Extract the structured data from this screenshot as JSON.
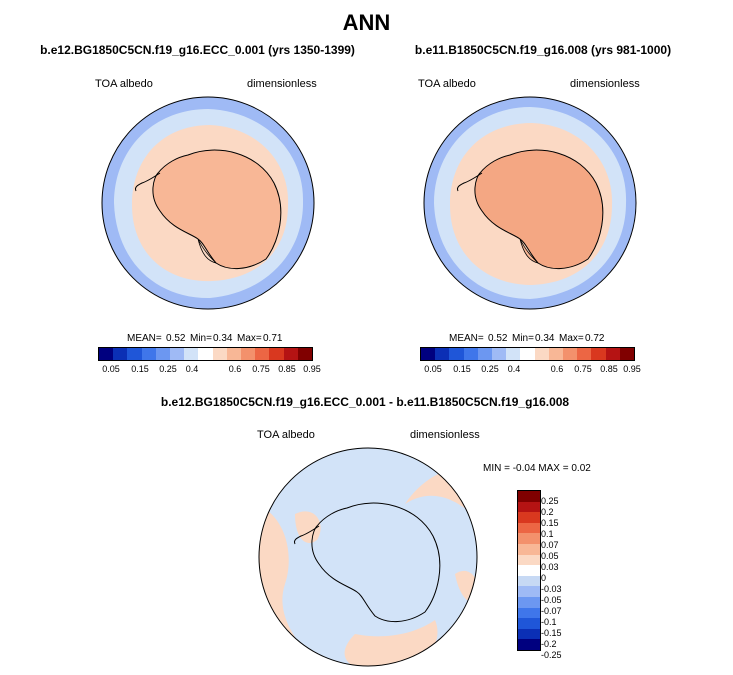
{
  "figure": {
    "main_title": "ANN",
    "panels": [
      {
        "title": "b.e12.BG1850C5CN.f19_g16.ECC_0.001 (yrs 1350-1399)",
        "variable": "TOA albedo",
        "units": "dimensionless",
        "stats": {
          "mean_label": "MEAN=",
          "mean": "0.52",
          "min_label": "Min=",
          "min": "0.34",
          "max_label": "Max=",
          "max": "0.71"
        }
      },
      {
        "title": "b.e11.B1850C5CN.f19_g16.008 (yrs 981-1000)",
        "variable": "TOA albedo",
        "units": "dimensionless",
        "stats": {
          "mean_label": "MEAN=",
          "mean": "0.52",
          "min_label": "Min=",
          "min": "0.34",
          "max_label": "Max=",
          "max": "0.72"
        }
      },
      {
        "title": "b.e12.BG1850C5CN.f19_g16.ECC_0.001 - b.e11.B1850C5CN.f19_g16.008",
        "variable": "TOA albedo",
        "units": "dimensionless",
        "stats": {
          "text": "MIN = -0.04 MAX =  0.02"
        }
      }
    ],
    "colorbar_abs": {
      "colors": [
        "#00007f",
        "#0b2fb5",
        "#1f56d8",
        "#3f76ea",
        "#6c97f1",
        "#9fbaf5",
        "#d2e3f8",
        "#ffffff",
        "#fbd9c4",
        "#f8b796",
        "#f3916c",
        "#ec6644",
        "#d9381f",
        "#b51313",
        "#800000"
      ],
      "labels": [
        "0.05",
        "0.15",
        "0.25",
        "0.4",
        "0.6",
        "0.75",
        "0.85",
        "0.95"
      ]
    },
    "colorbar_diff": {
      "colors": [
        "#800000",
        "#b51313",
        "#d9381f",
        "#ec6644",
        "#f3916c",
        "#f8b796",
        "#fbd9c4",
        "#ffffff",
        "#c7d9f4",
        "#9fbaf5",
        "#6c97f1",
        "#3f76ea",
        "#1f56d8",
        "#0b2fb5",
        "#00007f"
      ],
      "labels": [
        "0.25",
        "0.2",
        "0.15",
        "0.1",
        "0.07",
        "0.05",
        "0.03",
        "0",
        "-0.03",
        "-0.05",
        "-0.07",
        "-0.1",
        "-0.15",
        "-0.2",
        "-0.25"
      ]
    }
  }
}
